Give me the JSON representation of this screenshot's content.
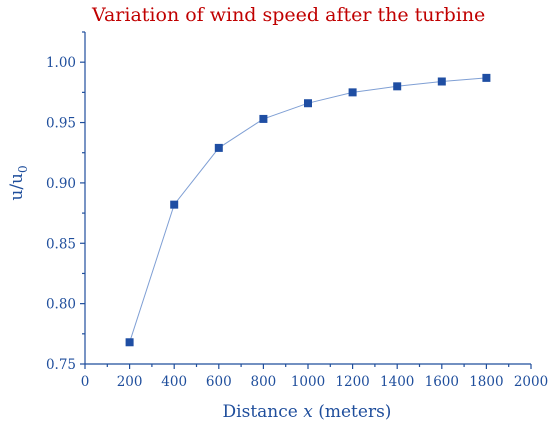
{
  "chart_data": {
    "type": "line",
    "title": "Variation of wind speed after the turbine",
    "xlabel_prefix": "Distance ",
    "xlabel_var": "x",
    "xlabel_suffix": " (meters)",
    "ylabel_main": "u/u",
    "ylabel_sub": "0",
    "xlim": [
      0,
      2000
    ],
    "ylim": [
      0.75,
      1.025
    ],
    "xticks": [
      0,
      200,
      400,
      600,
      800,
      1000,
      1200,
      1400,
      1600,
      1800,
      2000
    ],
    "yticks": [
      0.75,
      0.8,
      0.85,
      0.9,
      0.95,
      1.0
    ],
    "grid": false,
    "series": [
      {
        "x": [
          200,
          400,
          600,
          800,
          1000,
          1200,
          1400,
          1600,
          1800
        ],
        "y": [
          0.768,
          0.882,
          0.929,
          0.953,
          0.966,
          0.975,
          0.98,
          0.984,
          0.987
        ],
        "color": "#1f4ea3",
        "marker": "square"
      }
    ],
    "colors": {
      "axis": "#1f4e9c",
      "title": "#c00000",
      "line": "#7f9fd4"
    }
  }
}
